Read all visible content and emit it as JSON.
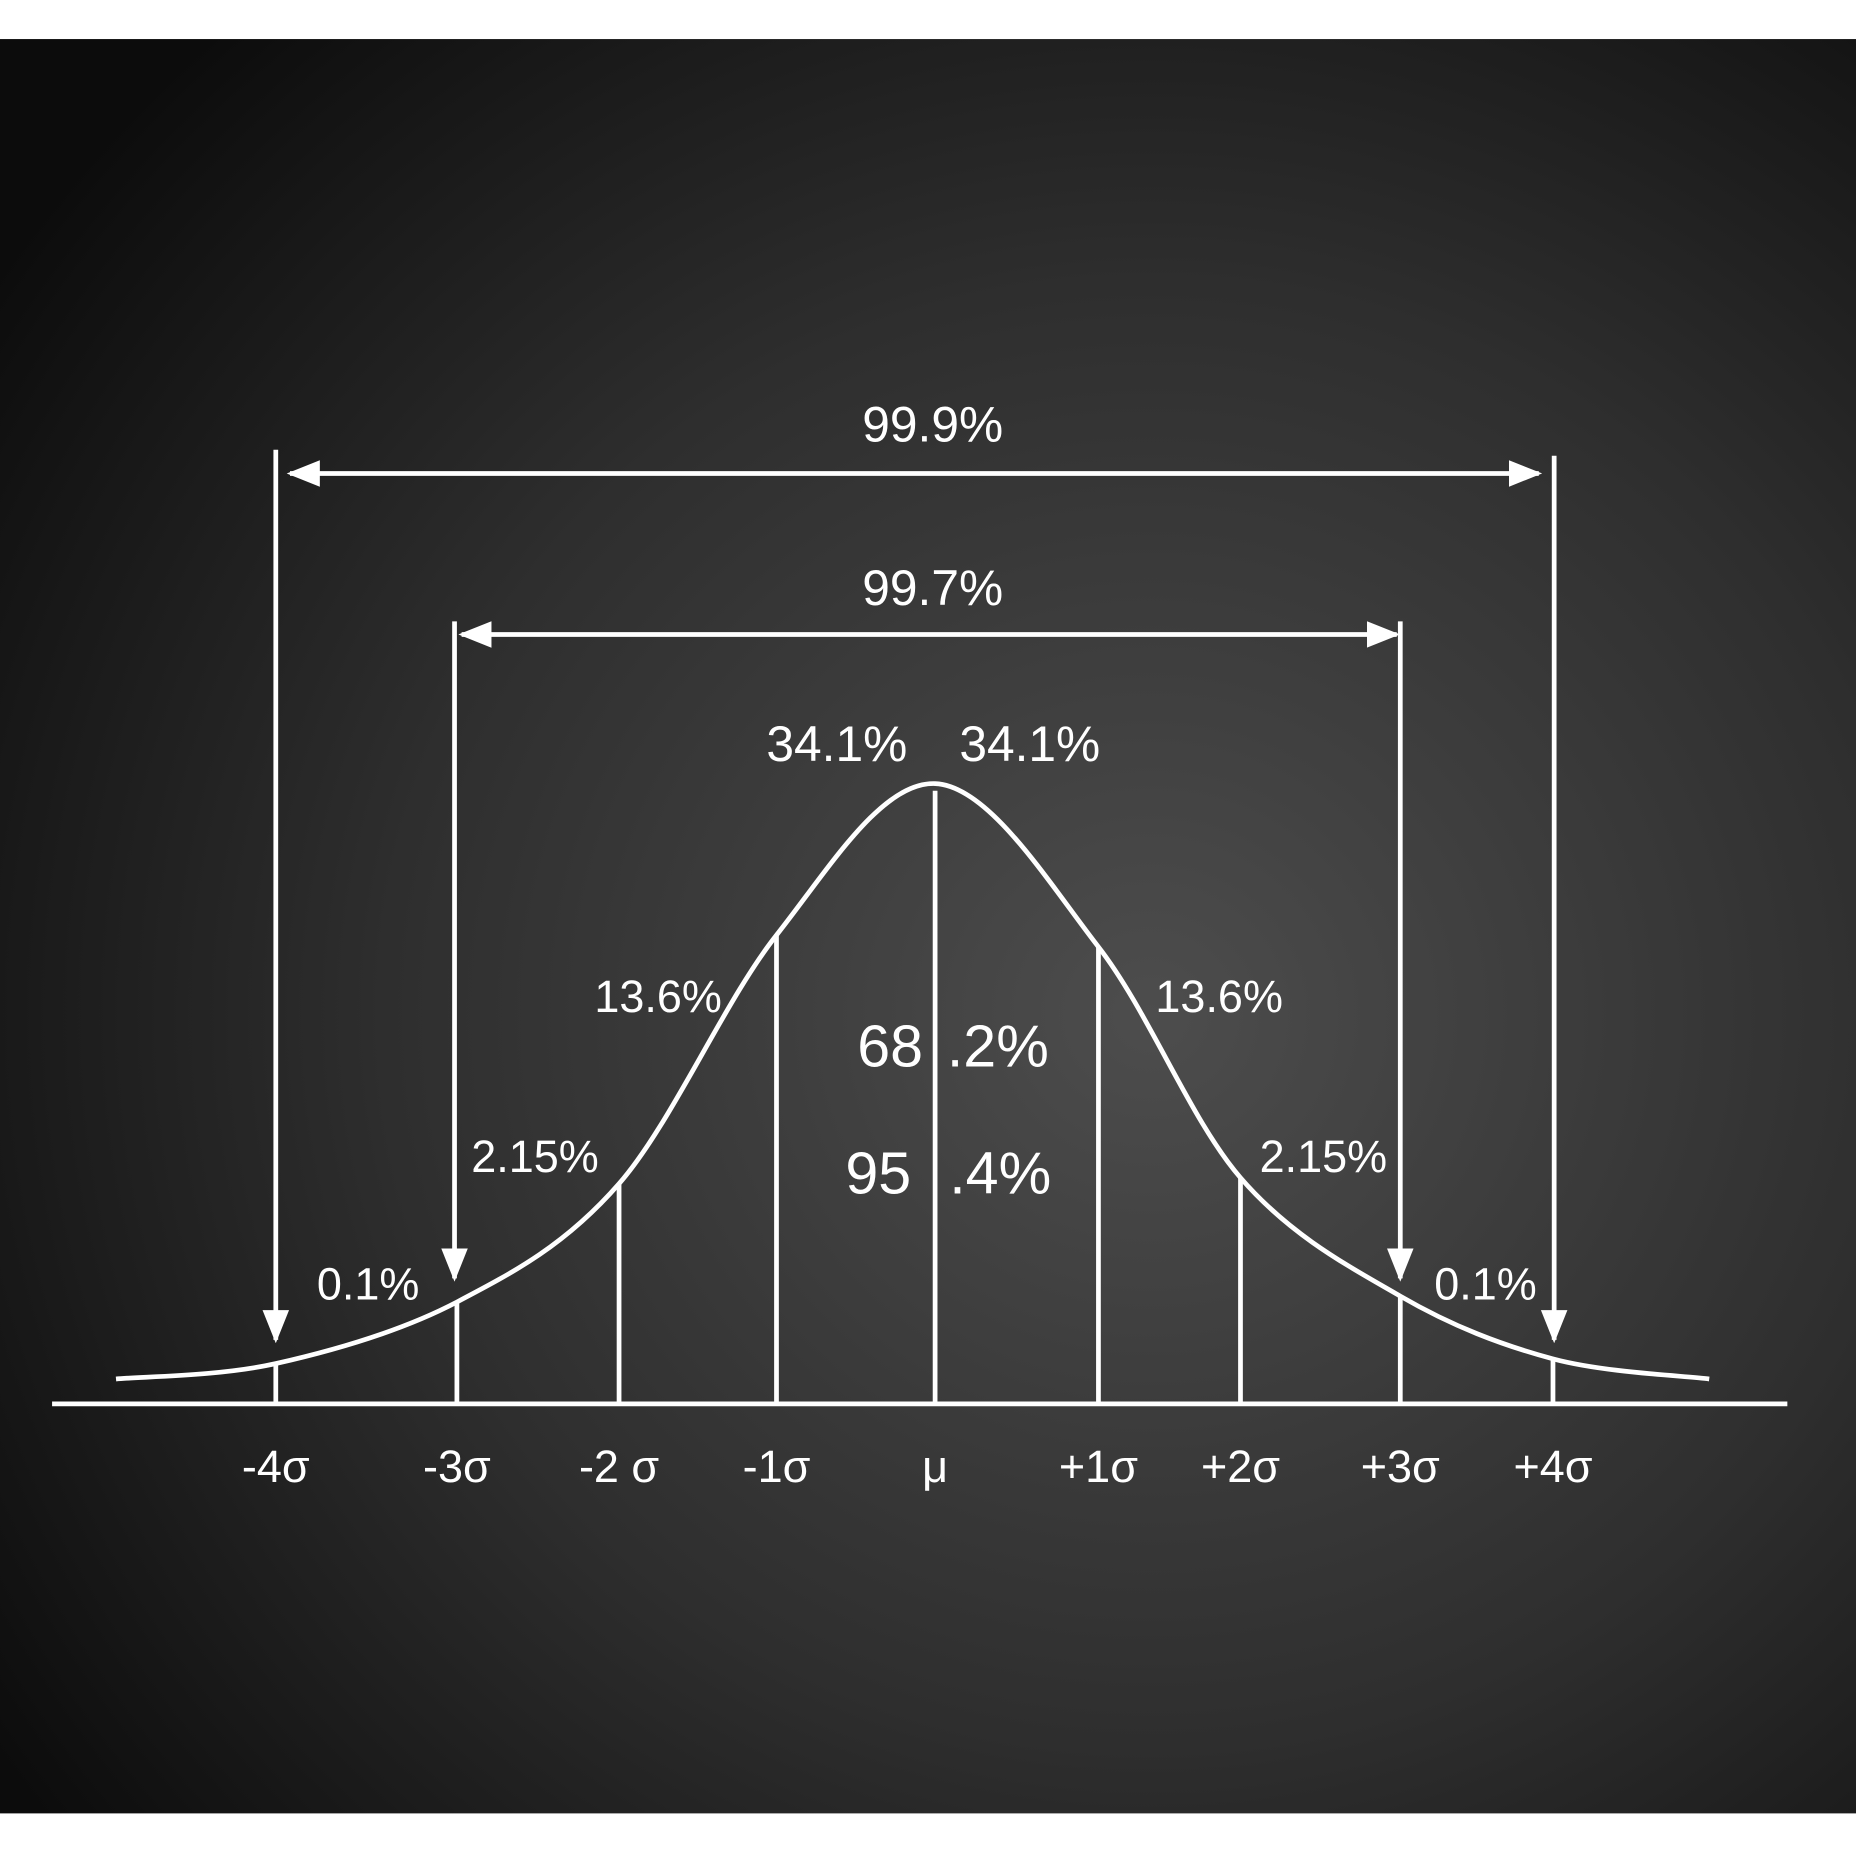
{
  "spans": [
    {
      "label": "99.9%"
    },
    {
      "label": "99.7%"
    }
  ],
  "segments": {
    "center_left": "34.1%",
    "center_right": "34.1%",
    "second_left": "13.6%",
    "second_right": "13.6%",
    "third_left": "2.15%",
    "third_right": "2.15%",
    "tail_left": "0.1%",
    "tail_right": "0.1%"
  },
  "center_totals": [
    {
      "left": "68",
      "right": ".2%"
    },
    {
      "left": "95",
      "right": ".4%"
    }
  ],
  "axis_labels": [
    "-4σ",
    "-3σ",
    "-2 σ",
    "-1σ",
    "μ",
    "+1σ",
    "+2σ",
    "+3σ",
    "+4σ"
  ]
}
